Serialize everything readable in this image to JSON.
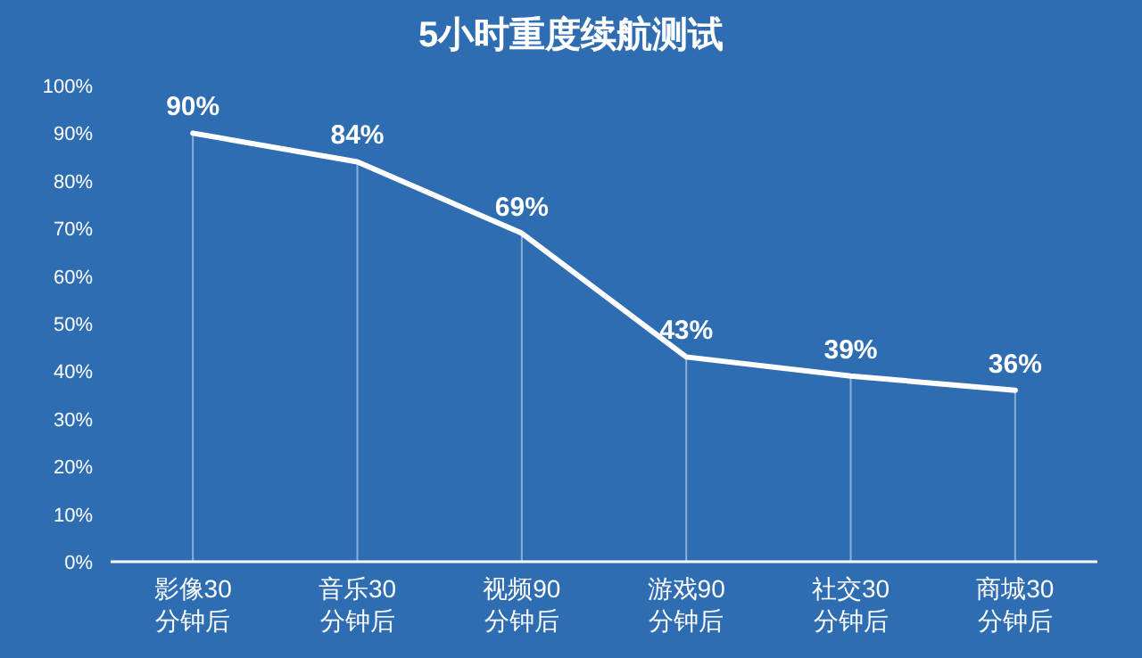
{
  "chart_data": {
    "type": "line",
    "title": "5小时重度续航测试",
    "categories": [
      "影像30\n分钟后",
      "音乐30\n分钟后",
      "视频90\n分钟后",
      "游戏90\n分钟后",
      "社交30\n分钟后",
      "商城30\n分钟后"
    ],
    "series": [
      {
        "color": "#ffffff",
        "values": [
          90,
          84,
          69,
          43,
          39,
          36
        ]
      }
    ],
    "value_labels": [
      "90%",
      "84%",
      "69%",
      "43%",
      "39%",
      "36%"
    ],
    "ylim": [
      0,
      100
    ],
    "yticks": [
      {
        "value": 0,
        "label": "0%"
      },
      {
        "value": 10,
        "label": "10%"
      },
      {
        "value": 20,
        "label": "20%"
      },
      {
        "value": 30,
        "label": "30%"
      },
      {
        "value": 40,
        "label": "40%"
      },
      {
        "value": 50,
        "label": "50%"
      },
      {
        "value": 60,
        "label": "60%"
      },
      {
        "value": 70,
        "label": "70%"
      },
      {
        "value": 80,
        "label": "80%"
      },
      {
        "value": 90,
        "label": "90%"
      },
      {
        "value": 100,
        "label": "100%"
      }
    ],
    "marker": "none",
    "line_style": "solid",
    "grid": "x"
  }
}
